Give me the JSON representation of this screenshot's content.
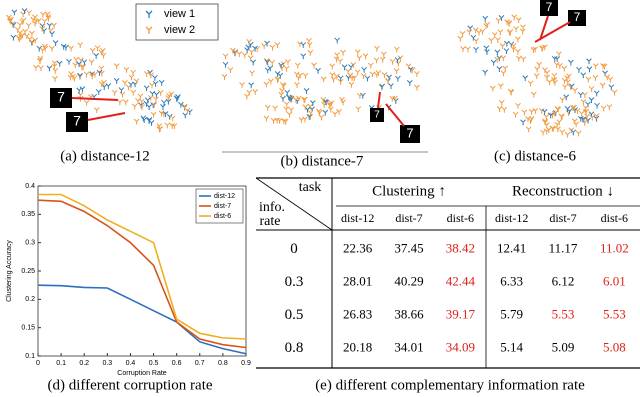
{
  "panels": [
    {
      "caption": "(a) distance-12"
    },
    {
      "caption": "(b) distance-7"
    },
    {
      "caption": "(c) distance-6"
    }
  ],
  "scatter_legend": {
    "labels": [
      "view 1",
      "view 2"
    ],
    "colors": [
      "#2b7bba",
      "#f39a3d"
    ]
  },
  "chart_data": {
    "type": "line",
    "caption": "(d) different corruption rate",
    "xlabel": "Corruption Rate",
    "ylabel": "Clustering Accuracy",
    "x": [
      0,
      0.1,
      0.2,
      0.3,
      0.4,
      0.5,
      0.6,
      0.7,
      0.8,
      0.9
    ],
    "series": [
      {
        "name": "dist-12",
        "color": "#2b6fbd",
        "values": [
          0.225,
          0.224,
          0.221,
          0.22,
          0.2,
          0.18,
          0.16,
          0.125,
          0.113,
          0.104
        ]
      },
      {
        "name": "dist-7",
        "color": "#d95319",
        "values": [
          0.375,
          0.373,
          0.355,
          0.33,
          0.3,
          0.26,
          0.16,
          0.13,
          0.12,
          0.115
        ]
      },
      {
        "name": "dist-6",
        "color": "#edb120",
        "values": [
          0.385,
          0.385,
          0.365,
          0.34,
          0.32,
          0.3,
          0.165,
          0.14,
          0.132,
          0.13
        ]
      }
    ],
    "xlim": [
      0,
      0.9
    ],
    "ylim": [
      0.1,
      0.4
    ],
    "xticks": [
      0,
      0.1,
      0.2,
      0.3,
      0.4,
      0.5,
      0.6,
      0.7,
      0.8,
      0.9
    ],
    "yticks": [
      0.1,
      0.15,
      0.2,
      0.25,
      0.3,
      0.35,
      0.4
    ],
    "legend": "top-right"
  },
  "table": {
    "caption": "(e) different complementary information rate",
    "corner_top": "task",
    "corner_bottom": [
      "info.",
      "rate"
    ],
    "groups": [
      "Clustering ↑",
      "Reconstruction ↓"
    ],
    "columns": [
      "dist-12",
      "dist-7",
      "dist-6",
      "dist-12",
      "dist-7",
      "dist-6"
    ],
    "highlight_color": "#e0201b",
    "rows": [
      {
        "label": "0",
        "cells": [
          "22.36",
          "37.45",
          "38.42",
          "12.41",
          "11.17",
          "11.02"
        ],
        "highlight": [
          2,
          5
        ]
      },
      {
        "label": "0.3",
        "cells": [
          "28.01",
          "40.29",
          "42.44",
          "6.33",
          "6.12",
          "6.01"
        ],
        "highlight": [
          2,
          5
        ]
      },
      {
        "label": "0.5",
        "cells": [
          "26.83",
          "38.66",
          "39.17",
          "5.79",
          "5.53",
          "5.53"
        ],
        "highlight": [
          2,
          4,
          5
        ]
      },
      {
        "label": "0.8",
        "cells": [
          "20.18",
          "34.01",
          "34.09",
          "5.14",
          "5.09",
          "5.08"
        ],
        "highlight": [
          2,
          5
        ]
      }
    ]
  }
}
